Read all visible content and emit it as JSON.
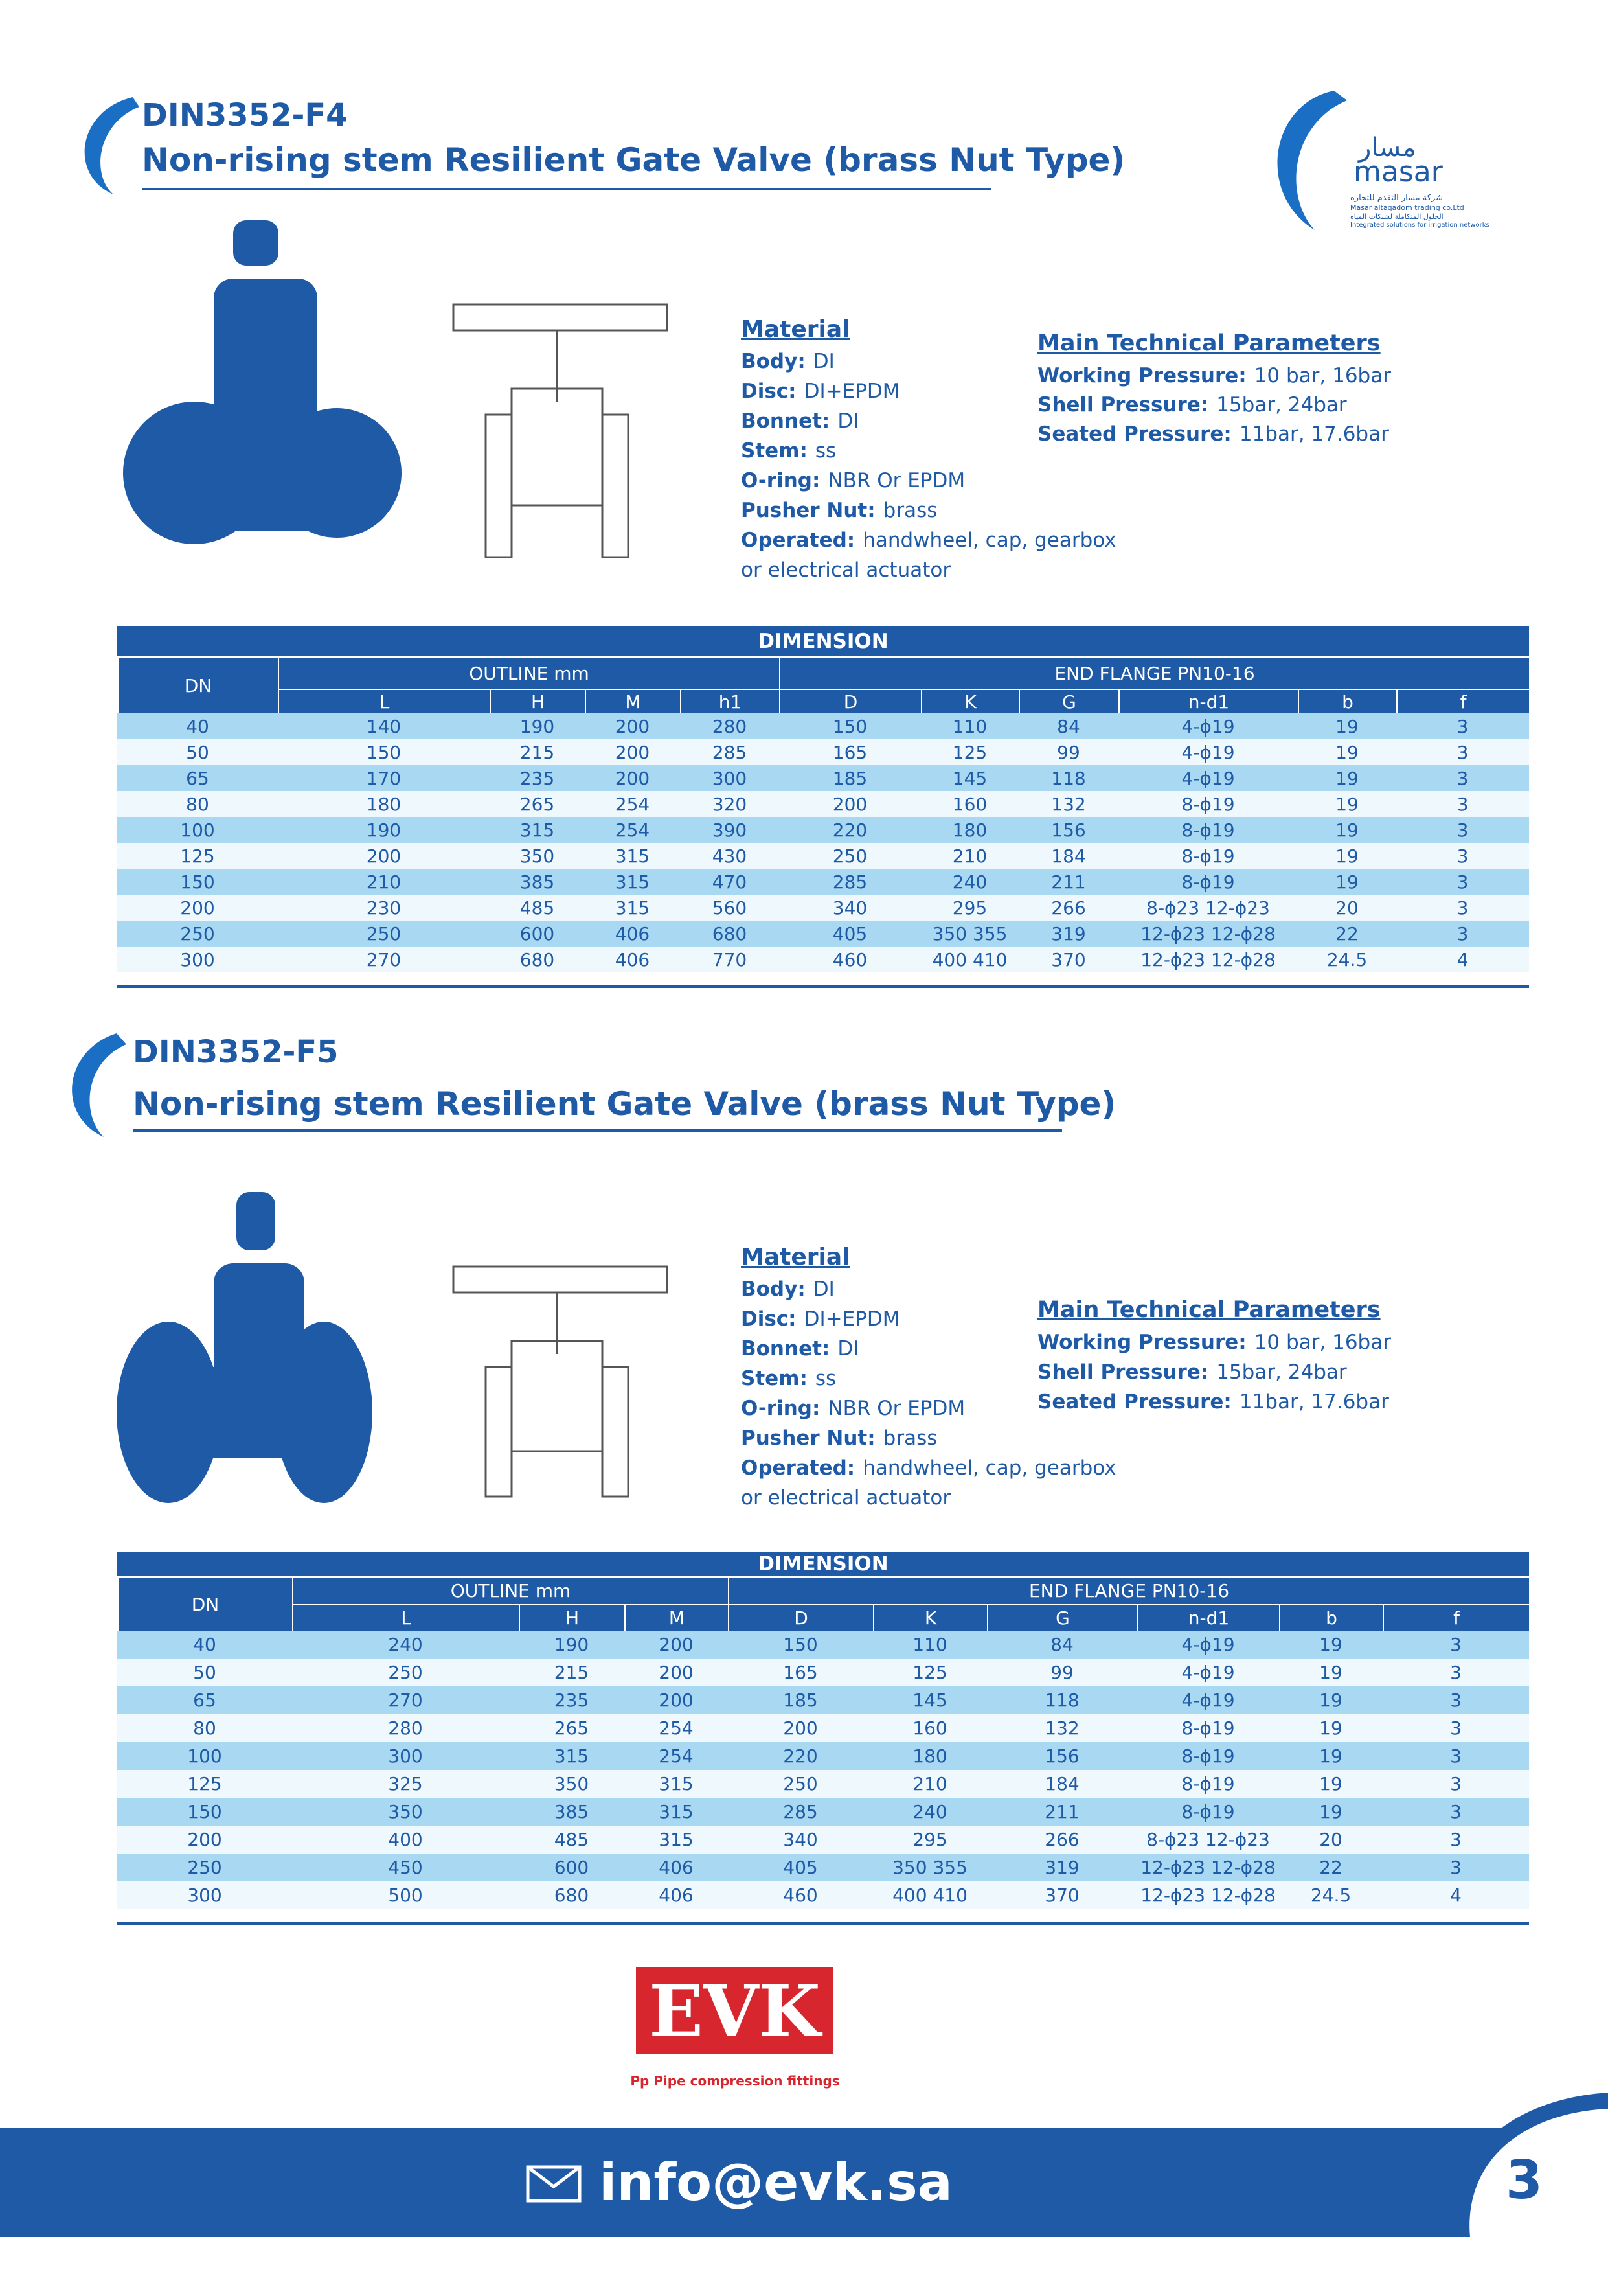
{
  "logo": {
    "arabic": "مسار",
    "latin": "masar",
    "line1": "شركة مسار التقدم للتجارة",
    "line2": "Masar altaqadom trading co.Ltd",
    "line3": "الحلول المتكاملة لشبكات المياه",
    "line4": "Integrated solutions for irrigation networks"
  },
  "sections": [
    {
      "code": "DIN3352-F4",
      "title": "Non-rising stem Resilient Gate Valve (brass Nut Type)",
      "material": {
        "heading": "Material",
        "items": [
          [
            "Body:",
            "DI"
          ],
          [
            "Disc:",
            "DI+EPDM"
          ],
          [
            "Bonnet:",
            "DI"
          ],
          [
            "Stem:",
            "ss"
          ],
          [
            "O-ring:",
            "NBR Or EPDM"
          ],
          [
            "Pusher Nut:",
            "brass"
          ],
          [
            "Operated:",
            "handwheel, cap, gearbox"
          ]
        ],
        "extra": "or electrical actuator"
      },
      "params": {
        "heading": "Main Technical Parameters",
        "items": [
          [
            "Working Pressure:",
            "10 bar, 16bar"
          ],
          [
            "Shell Pressure:",
            "15bar, 24bar"
          ],
          [
            "Seated Pressure:",
            "11bar, 17.6bar"
          ]
        ]
      },
      "table": {
        "title": "DIMENSION",
        "dn": "DN",
        "outline": "OUTLINE mm",
        "flange": "END FLANGE PN10-16",
        "columns": [
          "L",
          "H",
          "M",
          "h1",
          "D",
          "K",
          "G",
          "n-d1",
          "b",
          "f"
        ],
        "rows": [
          [
            "40",
            "140",
            "190",
            "200",
            "280",
            "150",
            "110",
            "84",
            "4-ϕ19",
            "19",
            "3"
          ],
          [
            "50",
            "150",
            "215",
            "200",
            "285",
            "165",
            "125",
            "99",
            "4-ϕ19",
            "19",
            "3"
          ],
          [
            "65",
            "170",
            "235",
            "200",
            "300",
            "185",
            "145",
            "118",
            "4-ϕ19",
            "19",
            "3"
          ],
          [
            "80",
            "180",
            "265",
            "254",
            "320",
            "200",
            "160",
            "132",
            "8-ϕ19",
            "19",
            "3"
          ],
          [
            "100",
            "190",
            "315",
            "254",
            "390",
            "220",
            "180",
            "156",
            "8-ϕ19",
            "19",
            "3"
          ],
          [
            "125",
            "200",
            "350",
            "315",
            "430",
            "250",
            "210",
            "184",
            "8-ϕ19",
            "19",
            "3"
          ],
          [
            "150",
            "210",
            "385",
            "315",
            "470",
            "285",
            "240",
            "211",
            "8-ϕ19",
            "19",
            "3"
          ],
          [
            "200",
            "230",
            "485",
            "315",
            "560",
            "340",
            "295",
            "266",
            "8-ϕ23 12-ϕ23",
            "20",
            "3"
          ],
          [
            "250",
            "250",
            "600",
            "406",
            "680",
            "405",
            "350 355",
            "319",
            "12-ϕ23 12-ϕ28",
            "22",
            "3"
          ],
          [
            "300",
            "270",
            "680",
            "406",
            "770",
            "460",
            "400 410",
            "370",
            "12-ϕ23 12-ϕ28",
            "24.5",
            "4"
          ]
        ]
      }
    },
    {
      "code": "DIN3352-F5",
      "title": "Non-rising stem Resilient Gate Valve (brass Nut Type)",
      "material": {
        "heading": "Material",
        "items": [
          [
            "Body:",
            "DI"
          ],
          [
            "Disc:",
            "DI+EPDM"
          ],
          [
            "Bonnet:",
            "DI"
          ],
          [
            "Stem:",
            "ss"
          ],
          [
            "O-ring:",
            "NBR Or EPDM"
          ],
          [
            "Pusher Nut:",
            "brass"
          ],
          [
            "Operated:",
            "handwheel, cap, gearbox"
          ]
        ],
        "extra": "or electrical actuator"
      },
      "params": {
        "heading": "Main Technical Parameters",
        "items": [
          [
            "Working Pressure:",
            "10 bar, 16bar"
          ],
          [
            "Shell Pressure:",
            "15bar, 24bar"
          ],
          [
            "Seated Pressure:",
            "11bar, 17.6bar"
          ]
        ]
      },
      "table": {
        "title": "DIMENSION",
        "dn": "DN",
        "outline": "OUTLINE mm",
        "flange": "END FLANGE PN10-16",
        "columns": [
          "L",
          "H",
          "M",
          "D",
          "K",
          "G",
          "n-d1",
          "b",
          "f"
        ],
        "rows": [
          [
            "40",
            "240",
            "190",
            "200",
            "150",
            "110",
            "84",
            "4-ϕ19",
            "19",
            "3"
          ],
          [
            "50",
            "250",
            "215",
            "200",
            "165",
            "125",
            "99",
            "4-ϕ19",
            "19",
            "3"
          ],
          [
            "65",
            "270",
            "235",
            "200",
            "185",
            "145",
            "118",
            "4-ϕ19",
            "19",
            "3"
          ],
          [
            "80",
            "280",
            "265",
            "254",
            "200",
            "160",
            "132",
            "8-ϕ19",
            "19",
            "3"
          ],
          [
            "100",
            "300",
            "315",
            "254",
            "220",
            "180",
            "156",
            "8-ϕ19",
            "19",
            "3"
          ],
          [
            "125",
            "325",
            "350",
            "315",
            "250",
            "210",
            "184",
            "8-ϕ19",
            "19",
            "3"
          ],
          [
            "150",
            "350",
            "385",
            "315",
            "285",
            "240",
            "211",
            "8-ϕ19",
            "19",
            "3"
          ],
          [
            "200",
            "400",
            "485",
            "315",
            "340",
            "295",
            "266",
            "8-ϕ23 12-ϕ23",
            "20",
            "3"
          ],
          [
            "250",
            "450",
            "600",
            "406",
            "405",
            "350 355",
            "319",
            "12-ϕ23 12-ϕ28",
            "22",
            "3"
          ],
          [
            "300",
            "500",
            "680",
            "406",
            "460",
            "400 410",
            "370",
            "12-ϕ23 12-ϕ28",
            "24.5",
            "4"
          ]
        ]
      }
    }
  ],
  "brand": {
    "name": "EVK",
    "tagline": "Pp Pipe compression fittings"
  },
  "footer": {
    "email": "info@evk.sa",
    "page": "3"
  }
}
